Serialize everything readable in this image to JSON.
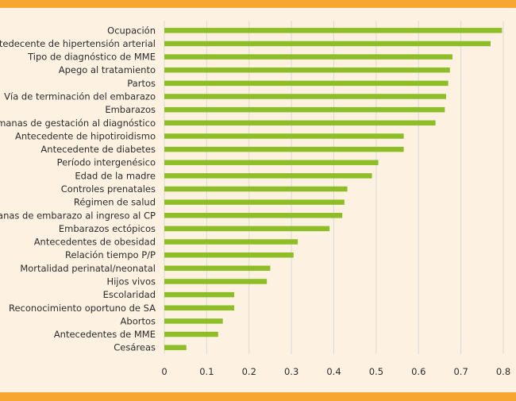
{
  "chart_data": {
    "type": "bar",
    "orientation": "horizontal",
    "categories": [
      "Ocupación",
      "Antedecente de hipertensión arterial",
      "Tipo de diagnóstico de MME",
      "Apego al tratamiento",
      "Partos",
      "Vía de terminación del embarazo",
      "Embarazos",
      "Semanas de gestación al diagnóstico",
      "Antecedente de hipotiroidismo",
      "Antecedente de diabetes",
      "Período intergenésico",
      "Edad de la madre",
      "Controles prenatales",
      "Régimen de salud",
      "Semanas de embarazo al ingreso al CP",
      "Embarazos ectópicos",
      "Antecedentes de obesidad",
      "Relación tiempo P/P",
      "Mortalidad perinatal/neonatal",
      "Hijos vivos",
      "Escolaridad",
      "Reconocimiento oportuno de SA",
      "Abortos",
      "Antecedentes de MME",
      "Cesáreas"
    ],
    "values": [
      0.797,
      0.77,
      0.68,
      0.674,
      0.67,
      0.665,
      0.662,
      0.64,
      0.565,
      0.565,
      0.505,
      0.49,
      0.432,
      0.425,
      0.42,
      0.39,
      0.315,
      0.305,
      0.25,
      0.242,
      0.165,
      0.165,
      0.138,
      0.127,
      0.052
    ],
    "xlim": [
      0,
      0.8
    ],
    "xticks": [
      "0",
      "0.1",
      "0.2",
      "0.3",
      "0.4",
      "0.5",
      "0.6",
      "0.7",
      "0.8"
    ],
    "title": "",
    "xlabel": "",
    "ylabel": "",
    "grid": true,
    "bar_color": "#8dbe27",
    "grid_color": "#d9d9d9",
    "band_color": "#f6a631"
  }
}
